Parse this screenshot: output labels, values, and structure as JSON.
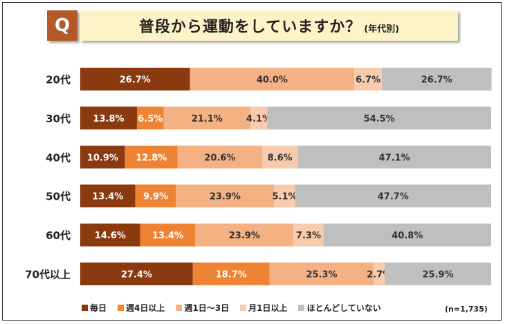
{
  "header": {
    "q_label": "Q",
    "title": "普段から運動をしていますか？",
    "subtitle": "(年代別)"
  },
  "note": "(n=1,735)",
  "colors": {
    "series": [
      "#8b3a0f",
      "#ee8433",
      "#f4b183",
      "#f8cbad",
      "#bfbfbf"
    ],
    "label_light": "#ffffff",
    "label_dark": "#333333"
  },
  "chart_data": {
    "type": "bar",
    "orientation": "horizontal",
    "stacked": true,
    "percent": true,
    "categories": [
      "20代",
      "30代",
      "40代",
      "50代",
      "60代",
      "70代以上"
    ],
    "series": [
      {
        "name": "毎日",
        "values": [
          26.7,
          13.8,
          10.9,
          13.4,
          14.6,
          27.4
        ]
      },
      {
        "name": "週4日以上",
        "values": [
          0,
          6.5,
          12.8,
          9.9,
          13.4,
          18.7
        ]
      },
      {
        "name": "週1日～3日",
        "values": [
          40.0,
          21.1,
          20.6,
          23.9,
          23.9,
          25.3
        ]
      },
      {
        "name": "月1日以上",
        "values": [
          6.7,
          4.1,
          8.6,
          5.1,
          7.3,
          2.7
        ]
      },
      {
        "name": "ほとんどしていない",
        "values": [
          26.7,
          54.5,
          47.1,
          47.7,
          40.8,
          25.9
        ]
      }
    ],
    "value_labels": [
      [
        "26.7%",
        "",
        "40.0%",
        "6.7%",
        "26.7%"
      ],
      [
        "13.8%",
        "6.5%",
        "21.1%",
        "4.1%",
        "54.5%"
      ],
      [
        "10.9%",
        "12.8%",
        "20.6%",
        "8.6%",
        "47.1%"
      ],
      [
        "13.4%",
        "9.9%",
        "23.9%",
        "5.1%",
        "47.7%"
      ],
      [
        "14.6%",
        "13.4%",
        "23.9%",
        "7.3%",
        "40.8%"
      ],
      [
        "27.4%",
        "18.7%",
        "25.3%",
        "2.7%",
        "25.9%"
      ]
    ],
    "legend_position": "bottom"
  }
}
